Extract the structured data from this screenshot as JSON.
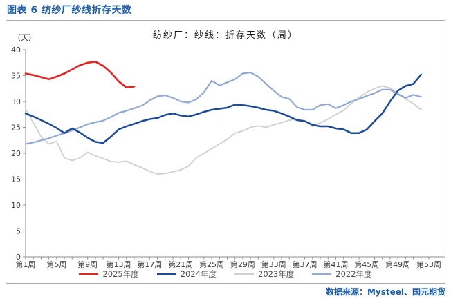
{
  "figure_title": "图表 6 纺纱厂纱线折存天数",
  "source_text": "数据来源：Mysteel、国元期货",
  "colors": {
    "title_blue": "#1b5eae",
    "axis_gray": "#8c8c8c",
    "tick_text": "#3d3d3d",
    "legend_text": "#4d4d4d",
    "box_border": "#ababab"
  },
  "chart_data": {
    "type": "line",
    "title": "纺纱厂：纱线：折存天数（周）",
    "y_unit_label": "（天）",
    "xlabel": "",
    "ylabel": "天",
    "ylim": [
      0,
      40
    ],
    "y_ticks": [
      0,
      5,
      10,
      15,
      20,
      25,
      30,
      35,
      40
    ],
    "x_range_weeks": [
      1,
      53
    ],
    "x_tick_weeks": [
      1,
      5,
      9,
      13,
      17,
      21,
      25,
      29,
      33,
      37,
      41,
      45,
      49,
      53
    ],
    "x_tick_labels": [
      "第1周",
      "第5周",
      "第9周",
      "第13周",
      "第17周",
      "第21周",
      "第25周",
      "第29周",
      "第33周",
      "第37周",
      "第41周",
      "第45周",
      "第49周",
      "第53周"
    ],
    "grid": false,
    "legend_position": "bottom",
    "series": [
      {
        "name": "2025年度",
        "color": "#e8231f",
        "line_width": 2.6,
        "start_week": 1,
        "values": [
          35.4,
          35.1,
          34.7,
          34.3,
          34.8,
          35.4,
          36.2,
          37.0,
          37.5,
          37.7,
          36.9,
          35.6,
          33.9,
          32.7,
          32.9
        ]
      },
      {
        "name": "2024年度",
        "color": "#1b4a97",
        "line_width": 2.5,
        "start_week": 1,
        "values": [
          27.7,
          27.1,
          26.4,
          25.7,
          24.9,
          23.9,
          24.8,
          24.0,
          23.0,
          22.2,
          22.0,
          23.2,
          24.6,
          25.2,
          25.7,
          26.2,
          26.6,
          26.8,
          27.4,
          27.7,
          27.3,
          27.1,
          27.5,
          28.0,
          28.4,
          28.6,
          28.8,
          29.4,
          29.3,
          29.1,
          28.8,
          28.4,
          28.2,
          27.7,
          27.1,
          26.4,
          26.2,
          25.5,
          25.2,
          25.2,
          24.8,
          24.6,
          23.9,
          23.9,
          24.6,
          26.2,
          27.7,
          30.0,
          32.1,
          33.0,
          33.4,
          35.2
        ]
      },
      {
        "name": "2023年度",
        "color": "#cfcfcf",
        "line_width": 1.8,
        "start_week": 1,
        "values": [
          28.5,
          25.9,
          23.2,
          21.8,
          22.3,
          19.1,
          18.6,
          19.1,
          20.2,
          19.5,
          19.0,
          18.4,
          18.3,
          18.5,
          17.8,
          17.2,
          16.5,
          16.0,
          16.1,
          16.4,
          16.8,
          17.5,
          19.1,
          20.0,
          20.9,
          21.8,
          22.7,
          23.9,
          24.3,
          25.0,
          25.3,
          25.0,
          25.5,
          25.9,
          26.4,
          26.6,
          26.3,
          25.2,
          25.9,
          26.6,
          27.5,
          28.3,
          29.6,
          30.8,
          31.8,
          32.5,
          33.0,
          32.6,
          31.6,
          30.5,
          29.6,
          28.4
        ]
      },
      {
        "name": "2022年度",
        "color": "#92a9d4",
        "line_width": 2.2,
        "start_week": 1,
        "values": [
          21.8,
          22.1,
          22.5,
          22.9,
          23.4,
          23.9,
          24.4,
          25.0,
          25.6,
          26.0,
          26.3,
          27.0,
          27.8,
          28.2,
          28.7,
          29.2,
          30.2,
          31.0,
          31.2,
          30.7,
          30.0,
          29.8,
          30.4,
          31.8,
          34.0,
          33.1,
          33.7,
          34.3,
          35.4,
          35.6,
          34.8,
          33.4,
          32.1,
          30.9,
          30.5,
          28.9,
          28.4,
          28.4,
          29.3,
          29.5,
          28.7,
          29.3,
          30.0,
          30.5,
          31.1,
          31.6,
          32.3,
          32.3,
          31.4,
          30.7,
          31.3,
          30.9
        ]
      }
    ]
  }
}
